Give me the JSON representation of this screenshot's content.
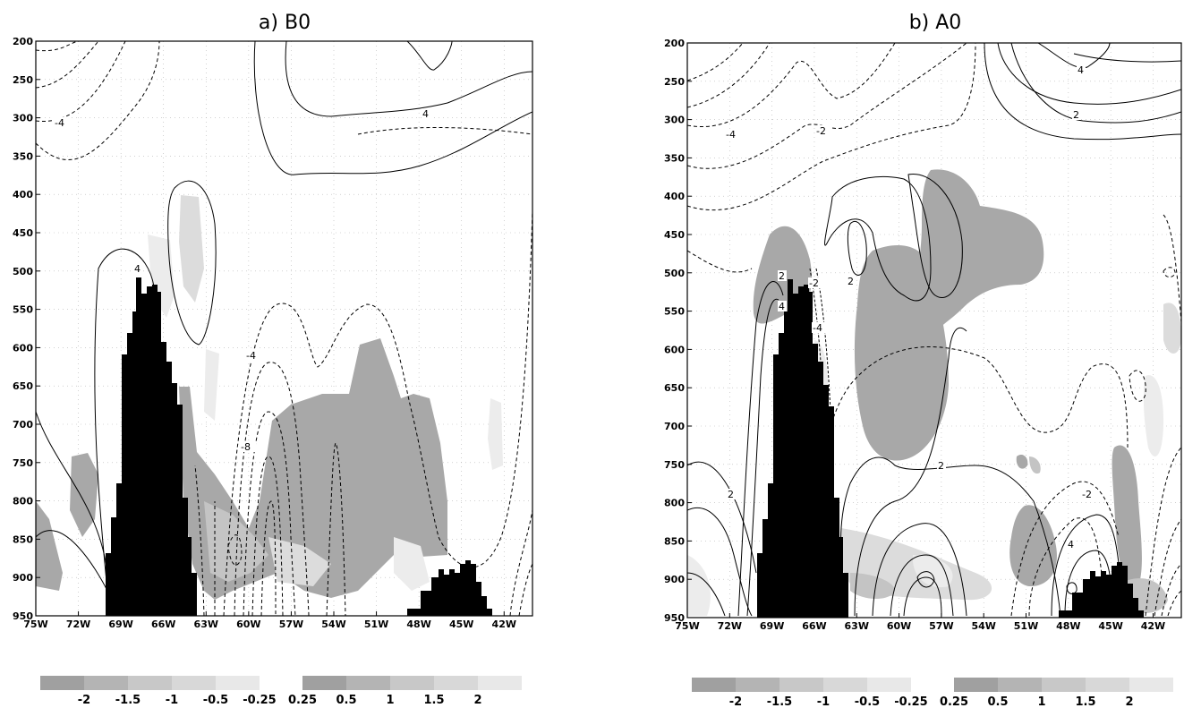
{
  "chart_data": [
    {
      "type": "heatmap",
      "title": "a) B0",
      "xlabel": "",
      "ylabel": "",
      "x_ticks": [
        "75W",
        "72W",
        "69W",
        "66W",
        "63W",
        "60W",
        "57W",
        "54W",
        "51W",
        "48W",
        "45W",
        "42W"
      ],
      "y_ticks": [
        200,
        250,
        300,
        350,
        400,
        450,
        500,
        550,
        600,
        650,
        700,
        750,
        800,
        850,
        900,
        950
      ],
      "xlim": [
        "75W",
        "40W"
      ],
      "ylim": [
        950,
        200
      ],
      "grid": true,
      "contour_labels": [
        "-4",
        "4",
        "4",
        "-4",
        "-8"
      ],
      "colorbar": {
        "negative_labels": [
          "-2",
          "-1.5",
          "-1",
          "-0.5",
          "-0.25"
        ],
        "positive_labels": [
          "0.25",
          "0.5",
          "1",
          "1.5",
          "2"
        ]
      }
    },
    {
      "type": "heatmap",
      "title": "b) A0",
      "xlabel": "",
      "ylabel": "",
      "x_ticks": [
        "75W",
        "72W",
        "69W",
        "66W",
        "63W",
        "60W",
        "57W",
        "54W",
        "51W",
        "48W",
        "45W",
        "42W"
      ],
      "y_ticks": [
        200,
        250,
        300,
        350,
        400,
        450,
        500,
        550,
        600,
        650,
        700,
        750,
        800,
        850,
        900,
        950
      ],
      "xlim": [
        "75W",
        "40W"
      ],
      "ylim": [
        950,
        200
      ],
      "grid": true,
      "contour_labels": [
        "4",
        "2",
        "-4",
        "-2",
        "2",
        "-2",
        "4",
        "-4",
        "2",
        "2",
        "-2",
        "4"
      ],
      "colorbar": {
        "negative_labels": [
          "-2",
          "-1.5",
          "-1",
          "-0.5",
          "-0.25"
        ],
        "positive_labels": [
          "0.25",
          "0.5",
          "1",
          "1.5",
          "2"
        ]
      }
    }
  ],
  "colors": {
    "shade_dark": "#8c8c8c",
    "shade_mid": "#a8a8a8",
    "shade_light": "#c4c4c4",
    "shade_lighter": "#dcdcdc",
    "shade_lightest": "#ececec",
    "terrain": "#000000"
  }
}
